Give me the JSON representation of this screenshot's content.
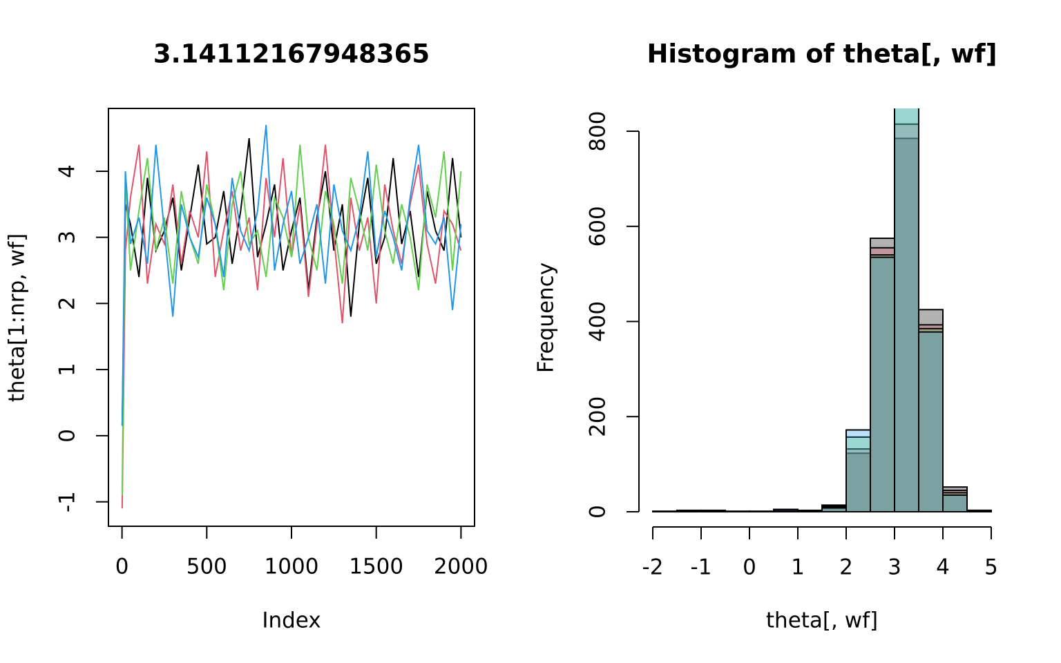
{
  "chart_data": [
    {
      "type": "line",
      "title": "3.14112167948365",
      "x_label": "Index",
      "y_label": "theta[1:nrp, wf]",
      "x": [
        1,
        20,
        50,
        100,
        150,
        200,
        250,
        300,
        350,
        400,
        450,
        500,
        550,
        600,
        650,
        700,
        750,
        800,
        850,
        900,
        950,
        1000,
        1050,
        1100,
        1150,
        1200,
        1250,
        1300,
        1350,
        1400,
        1450,
        1500,
        1550,
        1600,
        1650,
        1700,
        1750,
        1800,
        1850,
        1900,
        1950,
        2000
      ],
      "xlim": [
        -80,
        2080
      ],
      "xticks": [
        0,
        500,
        1000,
        1500,
        2000
      ],
      "ylim": [
        -1.37,
        4.95
      ],
      "yticks": [
        -1,
        0,
        1,
        2,
        3,
        4
      ],
      "series": [
        {
          "color": "#000000",
          "values": [
            0.15,
            3.5,
            3.2,
            2.4,
            3.9,
            2.8,
            3.1,
            3.6,
            2.5,
            3.3,
            4.1,
            2.9,
            3.0,
            3.7,
            2.6,
            3.4,
            4.5,
            2.7,
            3.2,
            3.8,
            2.5,
            3.1,
            3.6,
            2.2,
            3.3,
            4.0,
            2.8,
            3.5,
            1.8,
            3.2,
            3.9,
            2.6,
            3.0,
            4.2,
            2.9,
            3.4,
            2.4,
            3.7,
            3.1,
            2.8,
            4.2,
            3.0
          ]
        },
        {
          "color": "#DF536B",
          "values": [
            -1.1,
            2.8,
            3.6,
            4.4,
            2.3,
            3.2,
            2.9,
            3.8,
            2.6,
            3.4,
            3.0,
            4.3,
            2.4,
            3.1,
            3.7,
            2.8,
            3.3,
            2.2,
            3.9,
            3.0,
            4.2,
            2.7,
            3.5,
            2.1,
            3.2,
            4.4,
            3.0,
            1.7,
            3.6,
            2.8,
            3.3,
            2.0,
            3.8,
            3.1,
            2.6,
            3.5,
            4.1,
            2.9,
            2.3,
            3.4,
            3.2,
            2.8
          ]
        },
        {
          "color": "#61D04F",
          "values": [
            -0.9,
            3.9,
            2.5,
            3.4,
            4.2,
            2.8,
            3.3,
            2.3,
            3.7,
            3.0,
            2.6,
            3.8,
            3.2,
            2.2,
            3.5,
            4.0,
            2.9,
            3.1,
            2.4,
            3.6,
            3.3,
            2.7,
            4.4,
            3.0,
            2.5,
            3.7,
            3.2,
            2.3,
            3.9,
            3.4,
            2.8,
            4.1,
            3.1,
            2.6,
            3.5,
            3.0,
            2.2,
            3.8,
            3.3,
            4.3,
            2.5,
            4.0
          ]
        },
        {
          "color": "#2297E6",
          "values": [
            0.15,
            4.0,
            2.9,
            3.3,
            2.6,
            4.4,
            3.1,
            1.8,
            3.5,
            3.0,
            2.7,
            3.6,
            3.2,
            2.4,
            3.9,
            3.1,
            2.8,
            3.4,
            4.7,
            2.5,
            3.2,
            3.7,
            2.6,
            3.0,
            3.5,
            2.3,
            3.8,
            3.1,
            2.8,
            3.3,
            4.3,
            2.7,
            3.4,
            3.0,
            2.5,
            3.6,
            4.4,
            3.1,
            2.9,
            3.3,
            1.9,
            3.2
          ]
        }
      ]
    },
    {
      "type": "histogram",
      "title": "Histogram of theta[, wf]",
      "x_label": "theta[, wf]",
      "y_label": "Frequency",
      "bins": [
        -2,
        -1.5,
        -1,
        -0.5,
        0,
        0.5,
        1,
        1.5,
        2,
        2.5,
        3,
        3.5,
        4,
        4.5,
        5
      ],
      "xlim": [
        -2,
        5
      ],
      "xticks": [
        -2,
        -1,
        0,
        1,
        2,
        3,
        4,
        5
      ],
      "ylim": [
        0,
        848
      ],
      "yticks": [
        0,
        200,
        400,
        600,
        800
      ],
      "series": [
        {
          "color": "#000000",
          "values": [
            1,
            3,
            3,
            0,
            1,
            5,
            2,
            14,
            123,
            575,
            785,
            425,
            52,
            2
          ]
        },
        {
          "color": "#DF536B",
          "values": [
            0,
            2,
            2,
            1,
            0,
            3,
            2,
            12,
            132,
            555,
            815,
            393,
            45,
            3
          ]
        },
        {
          "color": "#61D04F",
          "values": [
            1,
            1,
            2,
            0,
            1,
            2,
            3,
            10,
            157,
            540,
            860,
            385,
            40,
            2
          ]
        },
        {
          "color": "#2297E6",
          "values": [
            0,
            2,
            1,
            1,
            0,
            4,
            1,
            8,
            172,
            535,
            900,
            378,
            35,
            3
          ]
        }
      ]
    }
  ]
}
